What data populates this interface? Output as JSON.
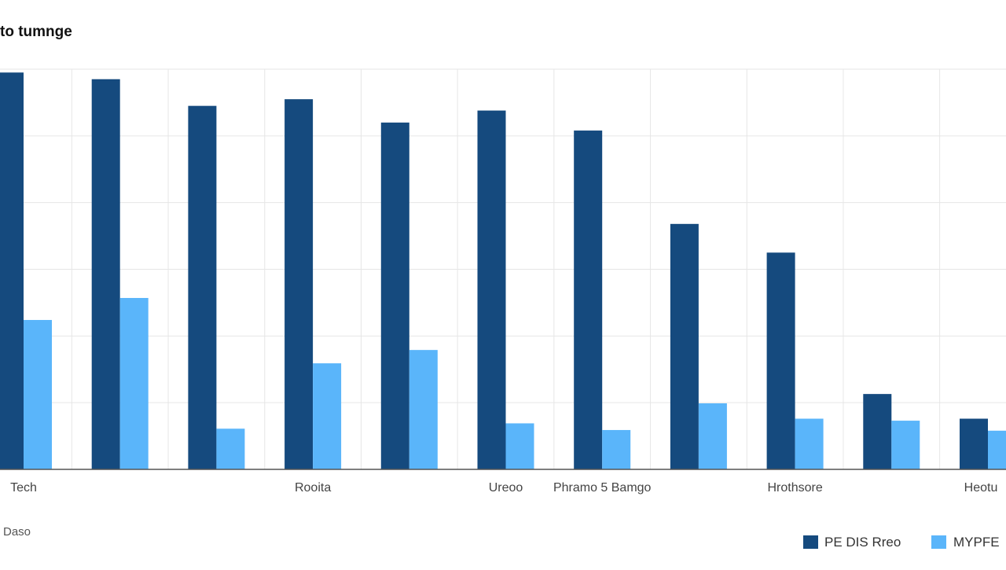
{
  "chart_data": {
    "type": "bar",
    "title": "to tumnge",
    "xlabel": "Daso",
    "ylabel": "",
    "ylim": [
      0,
      60
    ],
    "grid": true,
    "legend_position": "bottom-right",
    "categories": [
      "Tech",
      "",
      "",
      "Rooita",
      "",
      "Ureoo",
      "Phramo 5 Bamgo",
      "",
      "Hrothsore",
      "",
      "Heotu"
    ],
    "series": [
      {
        "name": "PE DIS Rreo",
        "color": "#154a7e",
        "values": [
          59.5,
          58.5,
          54.5,
          55.5,
          52.0,
          53.8,
          50.8,
          36.8,
          32.5,
          11.3,
          7.6
        ]
      },
      {
        "name": "MYPFE",
        "color": "#5ab5fa",
        "values": [
          22.4,
          25.7,
          6.1,
          15.9,
          17.9,
          6.9,
          5.9,
          9.9,
          7.6,
          7.3,
          5.8
        ]
      }
    ]
  }
}
